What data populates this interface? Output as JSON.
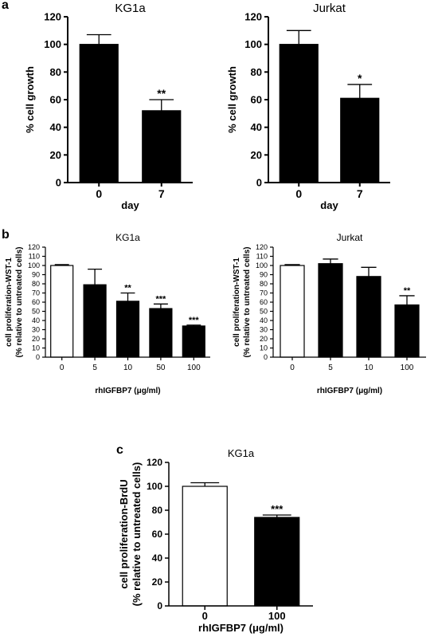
{
  "panel_labels": {
    "a": "a",
    "b": "b",
    "c": "c"
  },
  "chart_data": [
    {
      "id": "a1",
      "type": "bar",
      "title": "KG1a",
      "xlabel": "day",
      "ylabel": "% cell growth",
      "categories": [
        "0",
        "7"
      ],
      "values": [
        100,
        52
      ],
      "errors": [
        7,
        8
      ],
      "significance": [
        "",
        "**"
      ],
      "fills": [
        "#000000",
        "#000000"
      ],
      "ylim": [
        0,
        120
      ],
      "yticks": [
        0,
        20,
        40,
        60,
        80,
        100,
        120
      ],
      "grid": false
    },
    {
      "id": "a2",
      "type": "bar",
      "title": "Jurkat",
      "xlabel": "day",
      "ylabel": "% cell growth",
      "categories": [
        "0",
        "7"
      ],
      "values": [
        100,
        61
      ],
      "errors": [
        10,
        10
      ],
      "significance": [
        "",
        "*"
      ],
      "fills": [
        "#000000",
        "#000000"
      ],
      "ylim": [
        0,
        120
      ],
      "yticks": [
        0,
        20,
        40,
        60,
        80,
        100,
        120
      ],
      "grid": false
    },
    {
      "id": "b1",
      "type": "bar",
      "title": "KG1a",
      "xlabel": "rhIGFBP7 (μg/ml)",
      "ylabel": [
        "cell proliferation-WST-1",
        "(% relative to untreated cells)"
      ],
      "categories": [
        "0",
        "5",
        "10",
        "50",
        "100"
      ],
      "values": [
        100,
        79,
        61,
        53,
        34
      ],
      "errors": [
        1,
        17,
        9,
        5,
        1
      ],
      "significance": [
        "",
        "",
        "**",
        "***",
        "***"
      ],
      "fills": [
        "#ffffff",
        "#000000",
        "#000000",
        "#000000",
        "#000000"
      ],
      "ylim": [
        0,
        120
      ],
      "yticks": [
        0,
        10,
        20,
        30,
        40,
        50,
        60,
        70,
        80,
        90,
        100,
        110,
        120
      ],
      "grid": false
    },
    {
      "id": "b2",
      "type": "bar",
      "title": "Jurkat",
      "xlabel": "rhIGFBP7 (μg/ml)",
      "ylabel": [
        "cell proliferation-WST-1",
        "(% relative to untreated cells)"
      ],
      "categories": [
        "0",
        "5",
        "10",
        "100"
      ],
      "values": [
        100,
        102,
        88,
        57
      ],
      "errors": [
        1,
        5,
        10,
        10
      ],
      "significance": [
        "",
        "",
        "",
        "**"
      ],
      "fills": [
        "#ffffff",
        "#000000",
        "#000000",
        "#000000"
      ],
      "ylim": [
        0,
        120
      ],
      "yticks": [
        0,
        10,
        20,
        30,
        40,
        50,
        60,
        70,
        80,
        90,
        100,
        110,
        120
      ],
      "grid": false
    },
    {
      "id": "c1",
      "type": "bar",
      "title": "KG1a",
      "xlabel": "rhIGFBP7 (μg/ml)",
      "ylabel": [
        "cell proliferation-BrdU",
        "(% relative to untreated cells)"
      ],
      "categories": [
        "0",
        "100"
      ],
      "values": [
        100,
        74
      ],
      "errors": [
        3,
        2
      ],
      "significance": [
        "",
        "***"
      ],
      "fills": [
        "#ffffff",
        "#000000"
      ],
      "ylim": [
        0,
        120
      ],
      "yticks": [
        0,
        20,
        40,
        60,
        80,
        100,
        120
      ],
      "grid": false
    }
  ]
}
